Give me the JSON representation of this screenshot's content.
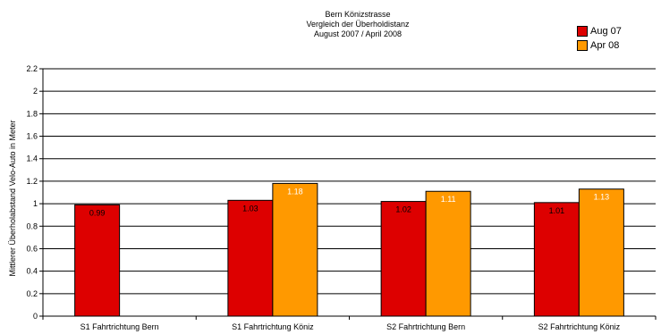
{
  "chart_data": {
    "type": "bar",
    "title_lines": [
      "Bern Könizstrasse",
      "Vergleich der Überholdistanz",
      "August 2007 / April 2008"
    ],
    "ylabel": "Mittlerer Überholabstand Velo-Auto in Meter",
    "xlabel": "",
    "ylim": [
      0,
      2.2
    ],
    "yticks": [
      "0",
      "0.2",
      "0.4",
      "0.6",
      "0.8",
      "1",
      "1.2",
      "1.4",
      "1.6",
      "1.8",
      "2",
      "2.2"
    ],
    "grid": true,
    "legend_position": "top-right",
    "categories": [
      "S1  Fahrtrichtung Bern",
      "S1 Fahrtrichtung Köniz",
      "S2 Fahrtrichtung Bern",
      "S2 Fahrtrichtung Köniz"
    ],
    "series": [
      {
        "name": "Aug 07",
        "color": "#dd0000",
        "label_color": "#000000",
        "values": [
          0.99,
          1.03,
          1.02,
          1.01
        ],
        "labels": [
          "0.99",
          "1.03",
          "1.02",
          "1.01"
        ]
      },
      {
        "name": "Apr 08",
        "color": "#ff9900",
        "label_color": "#ffffff",
        "values": [
          null,
          1.18,
          1.11,
          1.13
        ],
        "labels": [
          "",
          "1.18",
          "1.11",
          "1.13"
        ]
      }
    ]
  }
}
